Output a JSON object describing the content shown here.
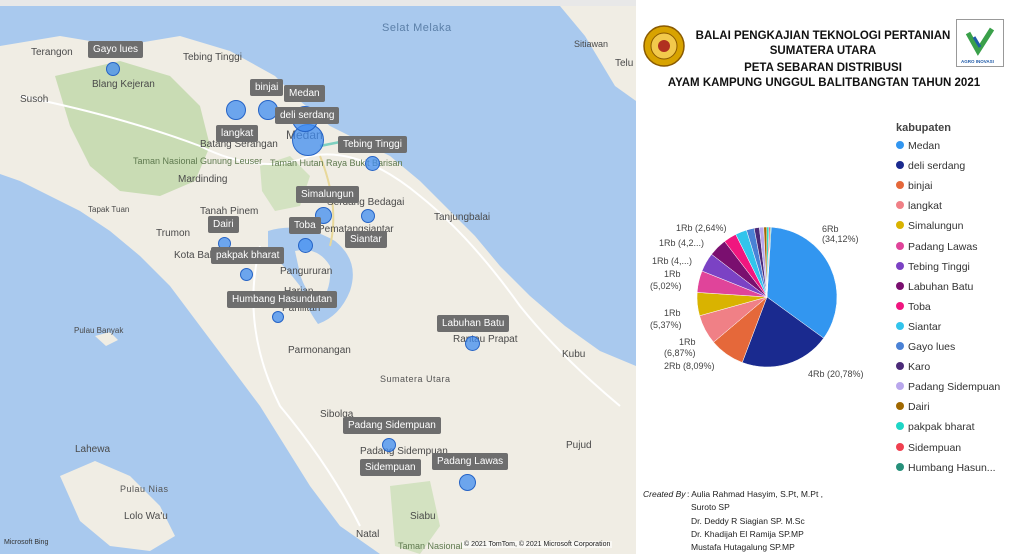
{
  "map": {
    "places": [
      {
        "name": "Terangon",
        "kind": "land"
      },
      {
        "name": "Tebing Tinggi",
        "kind": "land"
      },
      {
        "name": "Blang Kejeran",
        "kind": "land"
      },
      {
        "name": "Susoh",
        "kind": "land"
      },
      {
        "name": "Batang Serangan",
        "kind": "land"
      },
      {
        "name": "Taman Nasional Gunung Leuser",
        "kind": "park"
      },
      {
        "name": "Mardinding",
        "kind": "land"
      },
      {
        "name": "Tapak Tuan",
        "kind": "land"
      },
      {
        "name": "Tanah Pinem",
        "kind": "land"
      },
      {
        "name": "Trumon",
        "kind": "land"
      },
      {
        "name": "Kota Baharu",
        "kind": "land"
      },
      {
        "name": "Taman Hutan Raya Bukit Barisan",
        "kind": "park"
      },
      {
        "name": "Serdang Bedagai",
        "kind": "land"
      },
      {
        "name": "Pematangsiantar",
        "kind": "land"
      },
      {
        "name": "Tanjungbalai",
        "kind": "land"
      },
      {
        "name": "Pangururan",
        "kind": "land"
      },
      {
        "name": "Harian",
        "kind": "land"
      },
      {
        "name": "Parlilitan",
        "kind": "land"
      },
      {
        "name": "Pulau Banyak",
        "kind": "land"
      },
      {
        "name": "Parmonangan",
        "kind": "land"
      },
      {
        "name": "Rantau Prapat",
        "kind": "land"
      },
      {
        "name": "Kubu",
        "kind": "land"
      },
      {
        "name": "Sumatera Utara",
        "kind": "region"
      },
      {
        "name": "Sibolga",
        "kind": "land"
      },
      {
        "name": "Pujud",
        "kind": "land"
      },
      {
        "name": "Lahewa",
        "kind": "land"
      },
      {
        "name": "Padang Sidempuan",
        "kind": "land"
      },
      {
        "name": "Pulau Nias",
        "kind": "land"
      },
      {
        "name": "Lolo Wa'u",
        "kind": "land"
      },
      {
        "name": "Siabu",
        "kind": "land"
      },
      {
        "name": "Natal",
        "kind": "land"
      },
      {
        "name": "Taman Nasional",
        "kind": "park"
      },
      {
        "name": "Selat Melaka",
        "kind": "water"
      },
      {
        "name": "Sitiawan",
        "kind": "land"
      },
      {
        "name": "Telu",
        "kind": "land"
      },
      {
        "name": "Medan",
        "kind": "city"
      }
    ],
    "markers": [
      {
        "label": "Gayo lues"
      },
      {
        "label": "binjai"
      },
      {
        "label": "Medan"
      },
      {
        "label": "deli serdang"
      },
      {
        "label": "langkat"
      },
      {
        "label": "Tebing Tinggi"
      },
      {
        "label": "Simalungun"
      },
      {
        "label": "Toba"
      },
      {
        "label": "Dairi"
      },
      {
        "label": "Siantar"
      },
      {
        "label": "pakpak bharat"
      },
      {
        "label": "Humbang Hasundutan"
      },
      {
        "label": "Labuhan Batu"
      },
      {
        "label": "Padang Sidempuan"
      },
      {
        "label": "Sidempuan"
      },
      {
        "label": "Padang Lawas"
      }
    ],
    "attribution": "© 2021 TomTom, © 2021 Microsoft Corporation",
    "bing_logo": "Microsoft Bing"
  },
  "header": {
    "line1": "BALAI PENGKAJIAN TEKNOLOGI PERTANIAN",
    "line2": "SUMATERA UTARA",
    "line3": "PETA SEBARAN DISTRIBUSI",
    "line4": "AYAM KAMPUNG UNGGUL BALITBANGTAN TAHUN 2021",
    "logo_right_text": "AGRO INOVASI"
  },
  "chart_data": {
    "type": "pie",
    "legend_title": "kabupaten",
    "legend_position": "right",
    "series": [
      {
        "name": "Medan",
        "percent": 34.12,
        "label": "6Rb",
        "pct_label": "(34,12%)",
        "color": "#3296f0"
      },
      {
        "name": "deli serdang",
        "percent": 20.78,
        "label": "4Rb (20,78%)",
        "color": "#1a2a8f"
      },
      {
        "name": "binjai",
        "percent": 8.09,
        "label": "2Rb (8,09%)",
        "color": "#e5683a"
      },
      {
        "name": "langkat",
        "percent": 6.87,
        "label": "1Rb",
        "pct_label": "(6,87%)",
        "color": "#f08086"
      },
      {
        "name": "Simalungun",
        "percent": 5.37,
        "label": "1Rb",
        "pct_label": "(5,37%)",
        "color": "#d9b300"
      },
      {
        "name": "Padang Lawas",
        "percent": 5.02,
        "label": "1Rb",
        "pct_label": "(5,02%)",
        "color": "#e0449a"
      },
      {
        "name": "Tebing Tinggi",
        "percent": 4.4,
        "label": "1Rb (4,...)",
        "color": "#7b42c4"
      },
      {
        "name": "Labuhan Batu",
        "percent": 4.2,
        "label": "1Rb (4,2...)",
        "color": "#7a0f6f"
      },
      {
        "name": "Toba",
        "percent": 3.0,
        "label": "",
        "color": "#f0167f"
      },
      {
        "name": "Siantar",
        "percent": 2.64,
        "label": "1Rb (2,64%)",
        "color": "#32c4ec"
      },
      {
        "name": "Gayo lues",
        "percent": 1.8,
        "label": "",
        "color": "#4a82d6"
      },
      {
        "name": "Karo",
        "percent": 1.2,
        "label": "",
        "color": "#4b2a78"
      },
      {
        "name": "Padang Sidempuan",
        "percent": 1.0,
        "label": "",
        "color": "#b9a7ec"
      },
      {
        "name": "Dairi",
        "percent": 0.7,
        "label": "",
        "color": "#a06800"
      },
      {
        "name": "pakpak bharat",
        "percent": 0.5,
        "label": "",
        "color": "#1ed6c6"
      },
      {
        "name": "Sidempuan",
        "percent": 0.3,
        "label": "",
        "color": "#f04050"
      },
      {
        "name": "Humbang Hasun...",
        "percent": 0.2,
        "label": "",
        "color": "#26907a"
      }
    ]
  },
  "credits": {
    "label": "Created By",
    "lines": [
      ": Aulia Rahmad Hasyim, S.Pt, M.Pt ,",
      "Suroto SP",
      "Dr. Deddy R Siagian SP. M.Sc",
      "Dr. Khadijah El Ramija SP.MP",
      "Mustafa Hutagalung SP.MP"
    ]
  }
}
